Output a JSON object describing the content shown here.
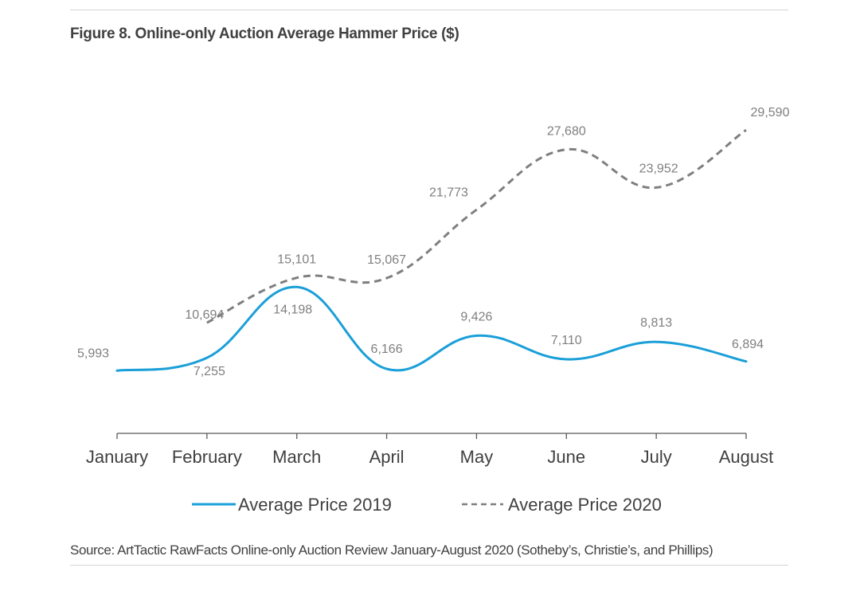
{
  "figure": {
    "title": "Figure 8. Online-only Auction Average Hammer Price ($)",
    "source": "Source: ArtTactic RawFacts Online-only Auction Review January-August 2020 (Sotheby’s, Christie’s, and Phillips)"
  },
  "chart_data": {
    "type": "line",
    "title": "Figure 8. Online-only Auction Average Hammer Price ($)",
    "xlabel": "",
    "ylabel": "",
    "categories": [
      "January",
      "February",
      "March",
      "April",
      "May",
      "June",
      "July",
      "August"
    ],
    "ylim": [
      0,
      34000
    ],
    "grid": false,
    "legend_position": "bottom",
    "smooth": true,
    "series": [
      {
        "name": "Average Price 2019",
        "color": "#1a9fd8",
        "style": "solid",
        "values": [
          5993,
          7255,
          14198,
          6166,
          9426,
          7110,
          8813,
          6894
        ],
        "labels": [
          "5,993",
          "7,255",
          "14,198",
          "6,166",
          "9,426",
          "7,110",
          "8,813",
          "6,894"
        ]
      },
      {
        "name": "Average Price 2020",
        "color": "#7f7f7f",
        "style": "dashed",
        "values": [
          null,
          10694,
          15101,
          15067,
          21773,
          27680,
          23952,
          29590
        ],
        "labels": [
          null,
          "10,694",
          "15,101",
          "15,067",
          "21,773",
          "27,680",
          "23,952",
          "29,590"
        ]
      }
    ]
  }
}
